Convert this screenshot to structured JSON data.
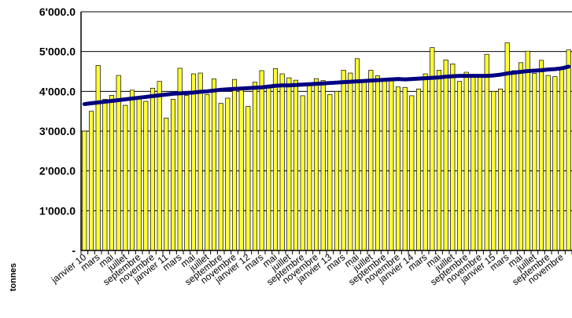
{
  "chart_data": {
    "type": "bar",
    "ylabel": "tonnes",
    "ylim": [
      0,
      6000
    ],
    "yticks": [
      "-",
      "1'000.0",
      "2'000.0",
      "3'000.0",
      "4'000.0",
      "5'000.0",
      "6'000.0"
    ],
    "grid": true,
    "legend": "none",
    "x_tick_labels": [
      "janvier 10",
      "mars",
      "mai",
      "juillet",
      "septembre",
      "novembre",
      "janvier 11",
      "mars",
      "mai",
      "juillet",
      "septembre",
      "novembre",
      "janvier 12",
      "mars",
      "mai",
      "juillet",
      "septembre",
      "novembre",
      "janvier 13",
      "mars",
      "mai",
      "juillet",
      "septembre",
      "novembre",
      "janvier 14",
      "mars",
      "mai",
      "juillet",
      "septembre",
      "novembre",
      "janvier 15",
      "mars",
      "mai",
      "juillet",
      "septembre",
      "novembre"
    ],
    "series": [
      {
        "type": "bar",
        "color": "#ffff33",
        "values": [
          3000,
          3500,
          4650,
          3800,
          3900,
          4400,
          3650,
          4030,
          3850,
          3750,
          4080,
          4250,
          3330,
          3800,
          4580,
          3900,
          4440,
          4460,
          3920,
          4310,
          3700,
          3830,
          4300,
          4050,
          3620,
          4230,
          4520,
          4120,
          4570,
          4440,
          4340,
          4280,
          3890,
          4190,
          4320,
          4270,
          3920,
          4000,
          4530,
          4460,
          4820,
          4270,
          4530,
          4390,
          4280,
          4300,
          4110,
          4100,
          3890,
          4060,
          4440,
          5100,
          4530,
          4790,
          4690,
          4250,
          4480,
          4430,
          4420,
          4930,
          4000,
          4060,
          5220,
          4520,
          4720,
          5010,
          4450,
          4780,
          4400,
          4370,
          4570,
          5040
        ]
      },
      {
        "type": "line",
        "color": "#000080",
        "values": [
          3680,
          3700,
          3720,
          3740,
          3760,
          3780,
          3800,
          3820,
          3840,
          3860,
          3880,
          3900,
          3920,
          3940,
          3950,
          3960,
          3970,
          3990,
          4000,
          4020,
          4040,
          4050,
          4060,
          4070,
          4080,
          4090,
          4100,
          4120,
          4140,
          4150,
          4150,
          4160,
          4170,
          4180,
          4190,
          4200,
          4210,
          4220,
          4230,
          4240,
          4250,
          4260,
          4270,
          4280,
          4290,
          4300,
          4310,
          4300,
          4310,
          4320,
          4330,
          4340,
          4350,
          4370,
          4380,
          4390,
          4390,
          4390,
          4390,
          4390,
          4400,
          4420,
          4450,
          4470,
          4490,
          4510,
          4520,
          4530,
          4550,
          4560,
          4580,
          4620
        ]
      }
    ]
  }
}
